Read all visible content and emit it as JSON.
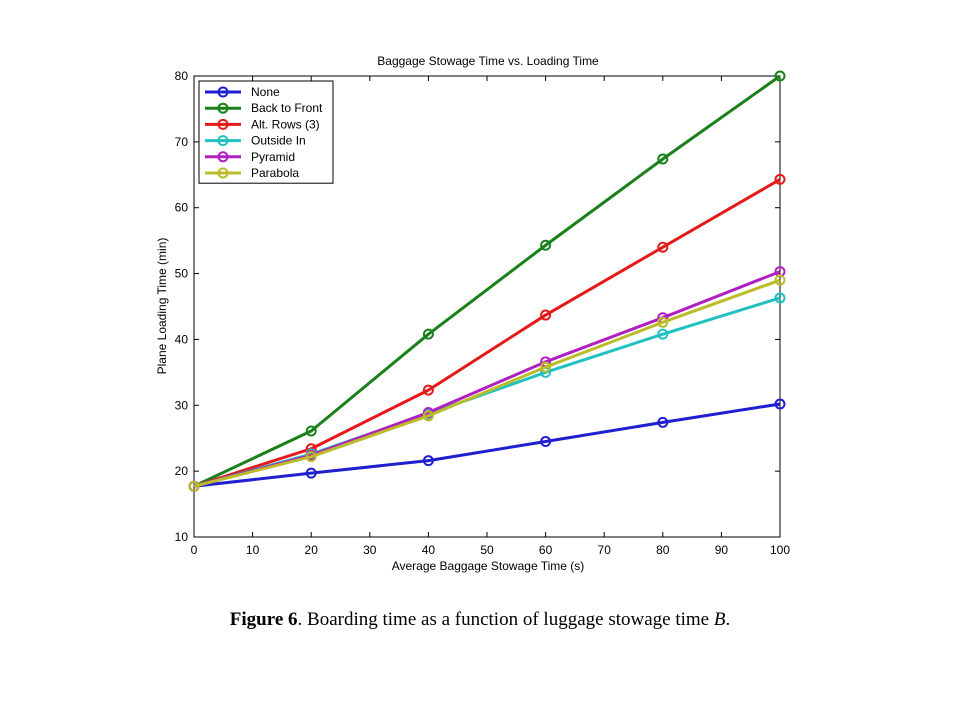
{
  "chart_data": {
    "type": "line",
    "title": "Baggage Stowage Time vs. Loading Time",
    "xlabel": "Average Baggage Stowage Time (s)",
    "ylabel": "Plane Loading Time (min)",
    "xlim": [
      0,
      100
    ],
    "ylim": [
      10,
      80
    ],
    "xticks": [
      0,
      10,
      20,
      30,
      40,
      50,
      60,
      70,
      80,
      90,
      100
    ],
    "yticks": [
      10,
      20,
      30,
      40,
      50,
      60,
      70,
      80
    ],
    "grid": false,
    "legend_position": "top-left",
    "marker": "circle",
    "x": [
      0,
      20,
      40,
      60,
      80,
      100
    ],
    "series": [
      {
        "name": "None",
        "color": "#1f1fd0",
        "values": [
          17.7,
          19.7,
          21.6,
          24.5,
          27.4,
          30.2
        ]
      },
      {
        "name": "Back to Front",
        "color": "#1a801a",
        "values": [
          17.7,
          26.1,
          40.8,
          54.3,
          67.4,
          80.0
        ]
      },
      {
        "name": "Alt. Rows (3)",
        "color": "#e41a1a",
        "values": [
          17.7,
          23.4,
          32.3,
          43.7,
          54.0,
          64.3
        ]
      },
      {
        "name": "Outside In",
        "color": "#22c0c0",
        "values": [
          17.7,
          22.6,
          28.7,
          35.0,
          40.8,
          46.3
        ]
      },
      {
        "name": "Pyramid",
        "color": "#b020c0",
        "values": [
          17.7,
          22.4,
          28.9,
          36.6,
          43.3,
          50.3
        ]
      },
      {
        "name": "Parabola",
        "color": "#bcbc28",
        "values": [
          17.7,
          22.2,
          28.4,
          35.8,
          42.6,
          49.0
        ]
      }
    ]
  },
  "caption": {
    "label": "Figure 6",
    "text_before": ". Boarding time as a function of luggage stowage time ",
    "variable": "B",
    "text_after": "."
  }
}
